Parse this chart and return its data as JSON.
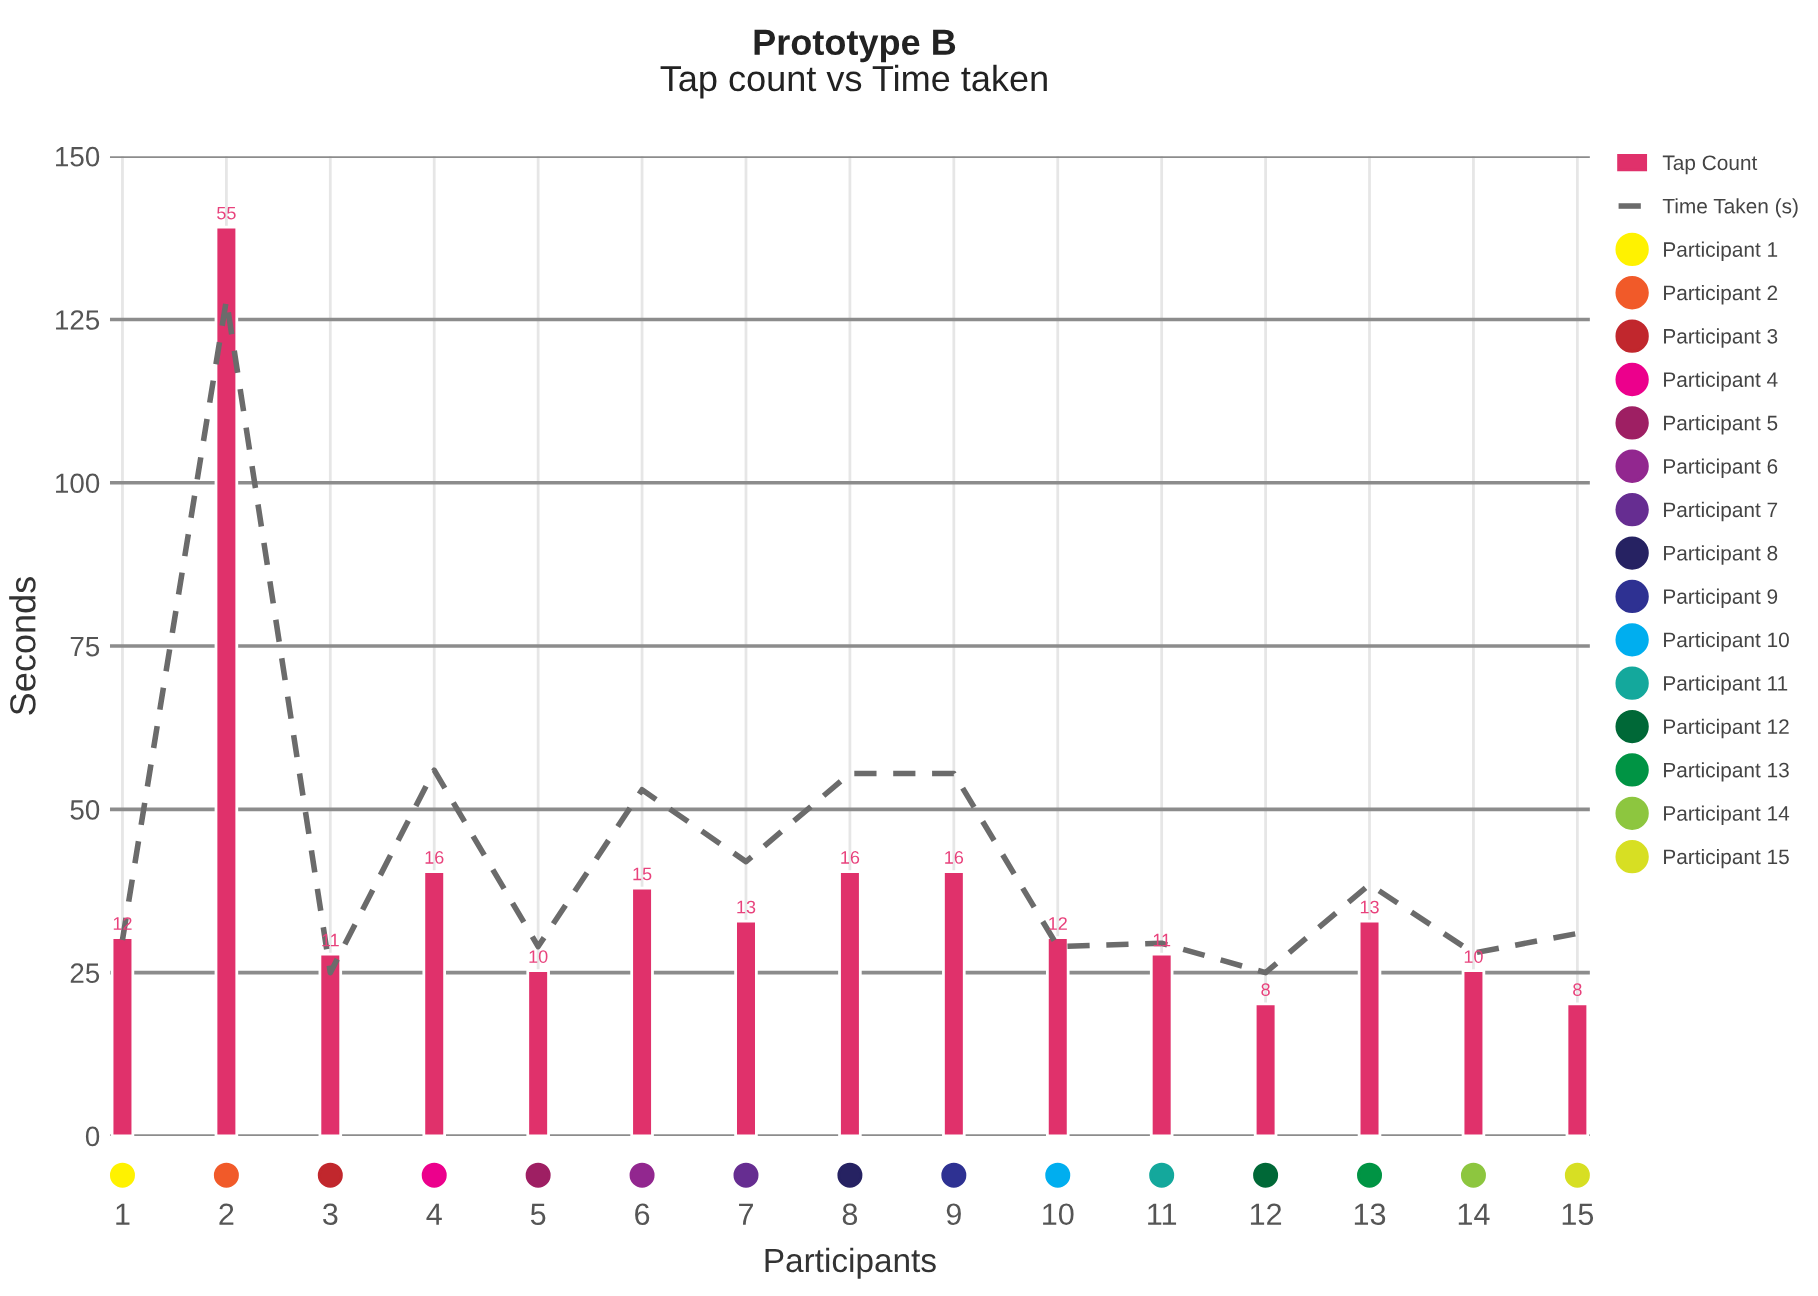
{
  "chart_data": {
    "type": "bar",
    "title": "Prototype B",
    "subtitle": "Tap count vs Time taken",
    "ylabel": "Seconds",
    "xlabel": "Participants",
    "categories": [
      "1",
      "2",
      "3",
      "4",
      "5",
      "6",
      "7",
      "8",
      "9",
      "10",
      "11",
      "12",
      "13",
      "14",
      "15"
    ],
    "series": [
      {
        "name": "Tap Count",
        "axis": "y2",
        "color": "#e0316b",
        "values": [
          12,
          55,
          11,
          16,
          10,
          15,
          13,
          16,
          16,
          12,
          11,
          8,
          13,
          10,
          8
        ],
        "value_labels": [
          "12",
          "55",
          "11",
          "16",
          "10",
          "15",
          "13",
          "16",
          "16",
          "12",
          "11",
          "8",
          "13",
          "10",
          "8"
        ]
      },
      {
        "name": "Time Taken (s)",
        "type": "line",
        "color": "#6b6b6b",
        "line_style": "dashed",
        "marker": "none",
        "values": [
          30,
          128,
          25,
          56,
          29,
          53,
          42,
          55.5,
          55.5,
          29,
          29.5,
          25,
          38.5,
          28,
          31
        ]
      },
      {
        "name": "Participant 1",
        "type": "scatter",
        "color": "#fff200",
        "x": [
          "1"
        ],
        "values": [
          null
        ]
      },
      {
        "name": "Participant 2",
        "type": "scatter",
        "color": "#f15a29",
        "x": [
          "2"
        ],
        "values": [
          null
        ]
      },
      {
        "name": "Participant 3",
        "type": "scatter",
        "color": "#c1272d",
        "x": [
          "3"
        ],
        "values": [
          null
        ]
      },
      {
        "name": "Participant 4",
        "type": "scatter",
        "color": "#ec008c",
        "x": [
          "4"
        ],
        "values": [
          null
        ]
      },
      {
        "name": "Participant 5",
        "type": "scatter",
        "color": "#9e1f63",
        "x": [
          "5"
        ],
        "values": [
          null
        ]
      },
      {
        "name": "Participant 6",
        "type": "scatter",
        "color": "#92278f",
        "x": [
          "6"
        ],
        "values": [
          null
        ]
      },
      {
        "name": "Participant 7",
        "type": "scatter",
        "color": "#662d91",
        "x": [
          "7"
        ],
        "values": [
          null
        ]
      },
      {
        "name": "Participant 8",
        "type": "scatter",
        "color": "#262262",
        "x": [
          "8"
        ],
        "values": [
          null
        ]
      },
      {
        "name": "Participant 9",
        "type": "scatter",
        "color": "#2e3192",
        "x": [
          "9"
        ],
        "values": [
          null
        ]
      },
      {
        "name": "Participant 10",
        "type": "scatter",
        "color": "#00aeef",
        "x": [
          "10"
        ],
        "values": [
          null
        ]
      },
      {
        "name": "Participant 11",
        "type": "scatter",
        "color": "#14a89c",
        "x": [
          "11"
        ],
        "values": [
          null
        ]
      },
      {
        "name": "Participant 12",
        "type": "scatter",
        "color": "#006837",
        "x": [
          "12"
        ],
        "values": [
          null
        ]
      },
      {
        "name": "Participant 13",
        "type": "scatter",
        "color": "#009444",
        "x": [
          "13"
        ],
        "values": [
          null
        ]
      },
      {
        "name": "Participant 14",
        "type": "scatter",
        "color": "#8dc63f",
        "x": [
          "14"
        ],
        "values": [
          null
        ]
      },
      {
        "name": "Participant 15",
        "type": "scatter",
        "color": "#d7df23",
        "x": [
          "15"
        ],
        "values": [
          null
        ]
      }
    ],
    "ylim": [
      0,
      150
    ],
    "yticks": [
      0,
      25,
      50,
      75,
      100,
      125,
      150
    ],
    "y2lim": [
      0,
      59.3
    ],
    "grid": true,
    "legend": "right",
    "marker": "circle"
  }
}
